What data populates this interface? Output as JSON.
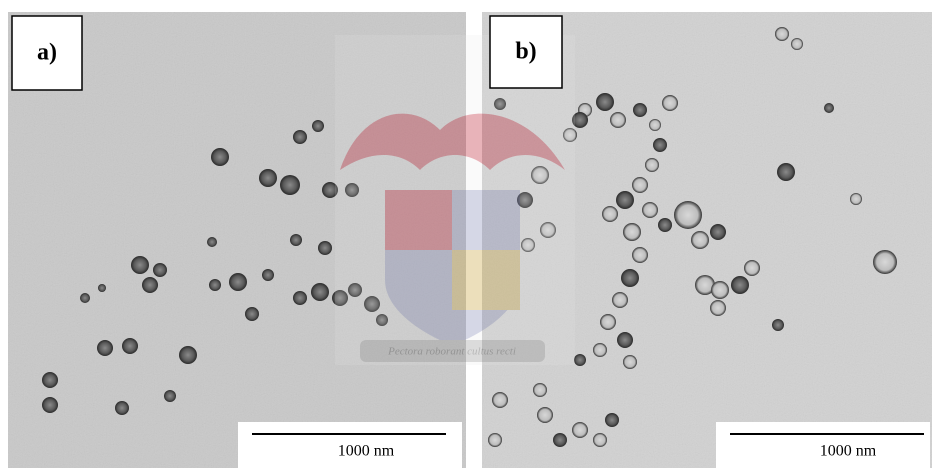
{
  "panels": [
    {
      "label": "a)",
      "scale_bar": "1000 nm"
    },
    {
      "label": "b)",
      "scale_bar": "1000 nm"
    }
  ],
  "watermark": "Pectora roborant cultus recti"
}
